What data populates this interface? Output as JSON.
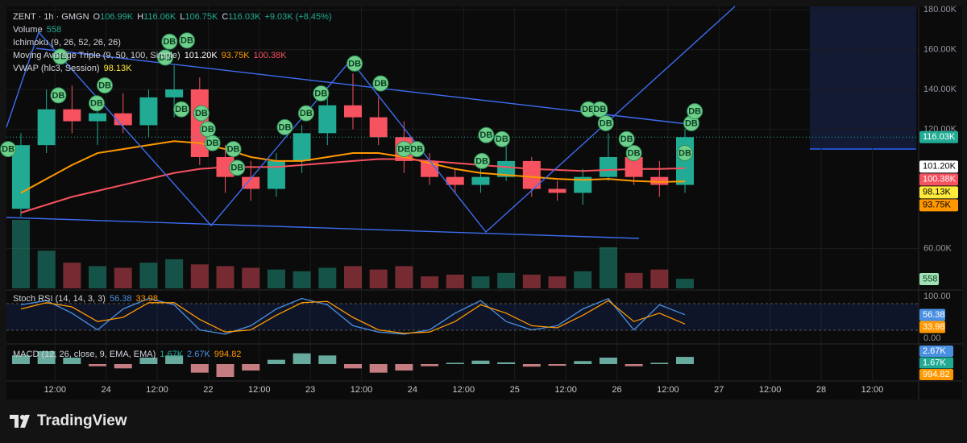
{
  "header": {
    "symbol": "ZENT · 1h · GMGN",
    "ohlc": [
      {
        "key": "O",
        "value": "106.99K"
      },
      {
        "key": "H",
        "value": "116.06K"
      },
      {
        "key": "L",
        "value": "106.75K"
      },
      {
        "key": "C",
        "value": "116.03K"
      }
    ],
    "change": "+9.03K (+8.45%)"
  },
  "indicators": [
    {
      "name": "Volume",
      "values": [
        {
          "text": "558",
          "color": "#22ab94"
        }
      ]
    },
    {
      "name": "Ichimoku (9, 26, 52, 26, 26)"
    },
    {
      "name": "Moving Average Triple (9, 50, 100, Simple)",
      "values": [
        {
          "text": "101.20K",
          "color": "#ffffff"
        },
        {
          "text": "93.75K",
          "color": "#ff9800"
        },
        {
          "text": "100.38K",
          "color": "#f7525f"
        }
      ]
    },
    {
      "name": "VWAP (hlc3, Session)",
      "values": [
        {
          "text": "98.13K",
          "color": "#ffeb3b"
        }
      ]
    },
    {
      "name": "Stoch RSI (14, 14, 3, 3)",
      "values": [
        {
          "text": "56.38",
          "color": "#4a90e2"
        },
        {
          "text": "33.98",
          "color": "#ff9800"
        }
      ]
    },
    {
      "name": "MACD (12, 26, close, 9, EMA, EMA)",
      "values": [
        {
          "text": "1.67K",
          "color": "#22ab94"
        },
        {
          "text": "2.67K",
          "color": "#4a90e2"
        },
        {
          "text": "994.82",
          "color": "#ff9800"
        }
      ]
    }
  ],
  "chart_data": {
    "type": "candlestick",
    "x_hours": [
      1,
      7,
      13,
      19,
      25,
      31,
      37,
      43,
      49,
      55,
      61,
      67,
      73,
      79,
      85,
      91,
      97,
      103,
      109,
      115,
      121,
      127,
      133,
      139,
      145,
      151,
      157
    ],
    "open": [
      80000,
      112000,
      130000,
      124000,
      128000,
      122000,
      136000,
      140000,
      106000,
      96000,
      90000,
      104000,
      118000,
      132000,
      126000,
      116000,
      104000,
      96000,
      92000,
      96000,
      104000,
      90000,
      88000,
      96000,
      106000,
      96000,
      92000
    ],
    "high": [
      118000,
      140000,
      142000,
      136000,
      138000,
      140000,
      152000,
      146000,
      112000,
      104000,
      108000,
      122000,
      140000,
      148000,
      136000,
      124000,
      108000,
      100000,
      100000,
      112000,
      106000,
      94000,
      100000,
      118000,
      110000,
      104000,
      120000
    ],
    "low": [
      76000,
      108000,
      118000,
      112000,
      118000,
      116000,
      126000,
      102000,
      88000,
      84000,
      86000,
      98000,
      112000,
      120000,
      112000,
      98000,
      92000,
      88000,
      88000,
      94000,
      86000,
      84000,
      82000,
      94000,
      92000,
      86000,
      88000
    ],
    "close": [
      112000,
      130000,
      124000,
      128000,
      122000,
      136000,
      140000,
      106000,
      96000,
      90000,
      104000,
      118000,
      132000,
      126000,
      116000,
      104000,
      96000,
      92000,
      96000,
      104000,
      90000,
      88000,
      96000,
      106000,
      96000,
      92000,
      116030
    ],
    "volume": [
      4000,
      2200,
      1500,
      1300,
      1200,
      1500,
      1700,
      1400,
      1300,
      1200,
      1100,
      1000,
      1200,
      1300,
      1100,
      1300,
      700,
      800,
      700,
      900,
      800,
      700,
      1000,
      2400,
      900,
      1100,
      558
    ],
    "ma50": [
      88000,
      95000,
      102000,
      108000,
      110000,
      112000,
      114000,
      113000,
      110000,
      106000,
      104000,
      104000,
      106000,
      108000,
      108000,
      106000,
      103000,
      100000,
      98000,
      97000,
      96000,
      95000,
      94500,
      95000,
      94000,
      93500,
      93750
    ],
    "ma100": [
      78000,
      82000,
      86000,
      89000,
      92000,
      95000,
      98000,
      100000,
      101000,
      101000,
      101000,
      102000,
      103000,
      104000,
      105000,
      105000,
      104000,
      103000,
      102000,
      101000,
      100000,
      99500,
      99000,
      99500,
      100000,
      100000,
      100380
    ],
    "ma50_color": "#ff9800",
    "ma100_color": "#f7525f",
    "up_color": "#22ab94",
    "down_color": "#f7525f",
    "xlim": [
      0.6,
      214.9
    ],
    "xticks": [
      {
        "value": 12,
        "label": "12:00"
      },
      24,
      {
        "value": 36,
        "label": "12:00"
      },
      22,
      {
        "value": 60,
        "label": "12:00"
      },
      23,
      {
        "value": 84,
        "label": "12:00"
      },
      24,
      {
        "value": 108,
        "label": "12:00"
      },
      25,
      {
        "value": 132,
        "label": "12:00"
      },
      26,
      {
        "value": 156,
        "label": "12:00"
      },
      27,
      {
        "value": 180,
        "label": "12:00"
      },
      28,
      {
        "value": 204,
        "label": "12:00"
      }
    ],
    "xtick_hours": [
      12,
      24,
      36,
      48,
      60,
      72,
      84,
      96,
      108,
      120,
      132,
      144,
      156,
      168,
      180,
      192,
      204
    ],
    "ylim": [
      40000,
      181700
    ],
    "yticks": [
      {
        "value": 180000,
        "label": "180.00K"
      },
      {
        "value": 160000,
        "label": "160.00K"
      },
      {
        "value": 140000,
        "label": "140.00K"
      },
      {
        "value": 120000,
        "label": "120.00K"
      },
      {
        "value": 60000,
        "label": "60.00K"
      }
    ],
    "grid": true,
    "price_tags": [
      {
        "value": 116030,
        "label": "116.03K"
      },
      {
        "value": 101200,
        "label": "101.20K"
      },
      {
        "value": 100380,
        "label": "100.38K"
      },
      {
        "value": 98130,
        "label": "98.13K"
      },
      {
        "value": 93750,
        "label": "93.75K"
      }
    ],
    "price_tag_colors": [
      "#22ab94",
      "#ffffff",
      "#f7525f",
      "#ffeb3b",
      "#ff9800"
    ],
    "db_markers": {
      "label": "DB",
      "x_hours": [
        1,
        13.3,
        12.8,
        21.8,
        23.7,
        38.9,
        43,
        37.9,
        41.7,
        46.4,
        47.9,
        49,
        53.9,
        54.8,
        66,
        71,
        74.5,
        82.4,
        88.5,
        94,
        97,
        113.3,
        117,
        112.3,
        137.3,
        140,
        141.4,
        146.3,
        148,
        160,
        161.5,
        162.3
      ],
      "prices": [
        110000,
        156500,
        137000,
        133000,
        142000,
        164000,
        164600,
        156000,
        130000,
        128000,
        120000,
        113000,
        110000,
        100600,
        121000,
        128000,
        138000,
        153000,
        143000,
        110000,
        110000,
        117000,
        115000,
        104000,
        130000,
        130000,
        123000,
        115000,
        108000,
        108000,
        123000,
        129000
      ]
    },
    "stoch": {
      "k": [
        80,
        90,
        60,
        20,
        70,
        95,
        80,
        20,
        10,
        30,
        70,
        95,
        80,
        30,
        15,
        10,
        20,
        60,
        90,
        40,
        20,
        30,
        70,
        95,
        20,
        80,
        56.38
      ],
      "d": [
        70,
        85,
        75,
        40,
        50,
        85,
        85,
        45,
        15,
        20,
        55,
        85,
        88,
        50,
        20,
        12,
        15,
        40,
        80,
        60,
        30,
        25,
        55,
        90,
        40,
        60,
        33.98
      ],
      "k_color": "#4a90e2",
      "d_color": "#ff9800",
      "ylim": [
        0,
        100
      ],
      "yticks": [
        {
          "value": 100,
          "label": "100.00"
        },
        {
          "value": 0,
          "label": "0.00"
        }
      ]
    },
    "macd": {
      "hist": [
        2000,
        3000,
        1500,
        -500,
        -1000,
        1500,
        2000,
        -2000,
        -3000,
        -1500,
        1000,
        2500,
        2000,
        -1000,
        -2000,
        -1500,
        -500,
        300,
        800,
        400,
        -600,
        -400,
        700,
        1500,
        -500,
        300,
        1670
      ],
      "tags": [
        {
          "value": 2670,
          "label": "2.67K"
        },
        {
          "value": 1670,
          "label": "1.67K"
        },
        {
          "value": 994.82,
          "label": "994.82"
        }
      ],
      "tag_colors": [
        "#4a90e2",
        "#22ab94",
        "#ff9800"
      ]
    }
  },
  "footer": {
    "brand": "TradingView"
  }
}
